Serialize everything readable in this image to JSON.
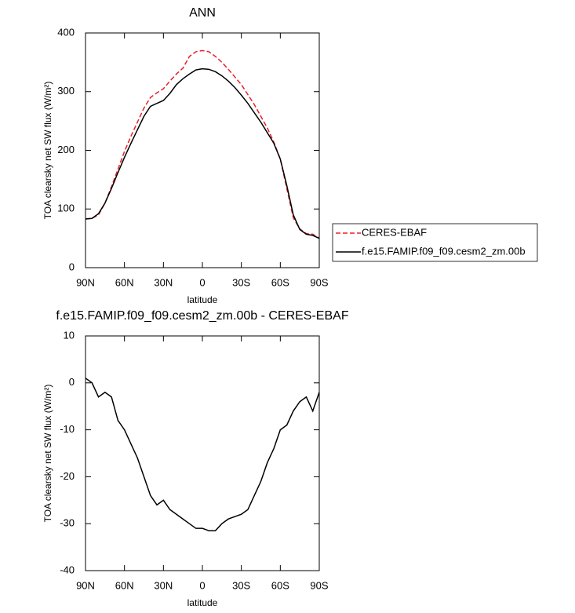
{
  "chart_data": [
    {
      "type": "line",
      "title": "ANN",
      "xlabel": "latitude",
      "ylabel": "TOA clearsky net SW flux (W/m²)",
      "x": [
        90,
        85,
        80,
        75,
        70,
        65,
        60,
        55,
        50,
        45,
        40,
        35,
        30,
        25,
        20,
        15,
        10,
        5,
        0,
        -5,
        -10,
        -15,
        -20,
        -25,
        -30,
        -35,
        -40,
        -45,
        -50,
        -55,
        -60,
        -65,
        -70,
        -75,
        -80,
        -85,
        -90
      ],
      "series": [
        {
          "name": "CERES-EBAF",
          "color": "#e8202a",
          "dash": true,
          "values": [
            83,
            84,
            90,
            110,
            138,
            168,
            198,
            224,
            248,
            272,
            290,
            298,
            305,
            318,
            330,
            340,
            360,
            368,
            370,
            368,
            360,
            350,
            338,
            325,
            312,
            295,
            278,
            258,
            238,
            214,
            185,
            135,
            85,
            66,
            58,
            57,
            50
          ]
        },
        {
          "name": "f.e15.FAMIP.f09_f09.cesm2_zm.00b",
          "color": "#000000",
          "dash": false,
          "values": [
            83,
            84,
            92,
            110,
            135,
            162,
            188,
            212,
            235,
            258,
            275,
            280,
            285,
            297,
            312,
            322,
            330,
            337,
            339,
            338,
            334,
            327,
            318,
            307,
            294,
            280,
            264,
            248,
            230,
            212,
            185,
            140,
            90,
            65,
            57,
            55,
            50
          ]
        }
      ],
      "xlim": [
        90,
        -90
      ],
      "xticks": [
        {
          "value": 90,
          "label": "90N"
        },
        {
          "value": 60,
          "label": "60N"
        },
        {
          "value": 30,
          "label": "30N"
        },
        0,
        {
          "value": -30,
          "label": "30S"
        },
        {
          "value": -60,
          "label": "60S"
        },
        {
          "value": -90,
          "label": "90S"
        }
      ],
      "ylim": [
        0,
        400
      ],
      "yticks": [
        0,
        100,
        200,
        300,
        400
      ],
      "legend": "right"
    },
    {
      "type": "line",
      "title": "f.e15.FAMIP.f09_f09.cesm2_zm.00b - CERES-EBAF",
      "xlabel": "latitude",
      "ylabel": "TOA clearsky net SW flux (W/m²)",
      "x": [
        90,
        85,
        80,
        75,
        70,
        65,
        60,
        55,
        50,
        45,
        40,
        35,
        30,
        25,
        20,
        15,
        10,
        5,
        0,
        -5,
        -10,
        -15,
        -20,
        -25,
        -30,
        -35,
        -40,
        -45,
        -50,
        -55,
        -60,
        -65,
        -70,
        -75,
        -80,
        -85,
        -90
      ],
      "color": "#000000",
      "values": [
        1,
        0,
        -3,
        -2,
        -3,
        -8,
        -10,
        -13,
        -16,
        -20,
        -24,
        -26,
        -25,
        -27,
        -28,
        -29,
        -30,
        -31,
        -31,
        -31.5,
        -31.5,
        -30,
        -29,
        -28.5,
        -28,
        -27,
        -24,
        -21,
        -17,
        -14,
        -10,
        -9,
        -6,
        -4,
        -3,
        -6,
        -2
      ],
      "xlim": [
        90,
        -90
      ],
      "xticks": [
        {
          "value": 90,
          "label": "90N"
        },
        {
          "value": 60,
          "label": "60N"
        },
        {
          "value": 30,
          "label": "30N"
        },
        0,
        {
          "value": -30,
          "label": "30S"
        },
        {
          "value": -60,
          "label": "60S"
        },
        {
          "value": -90,
          "label": "90S"
        }
      ],
      "ylim": [
        -40,
        10
      ],
      "yticks": [
        -40,
        -30,
        -20,
        -10,
        0,
        10
      ]
    }
  ]
}
